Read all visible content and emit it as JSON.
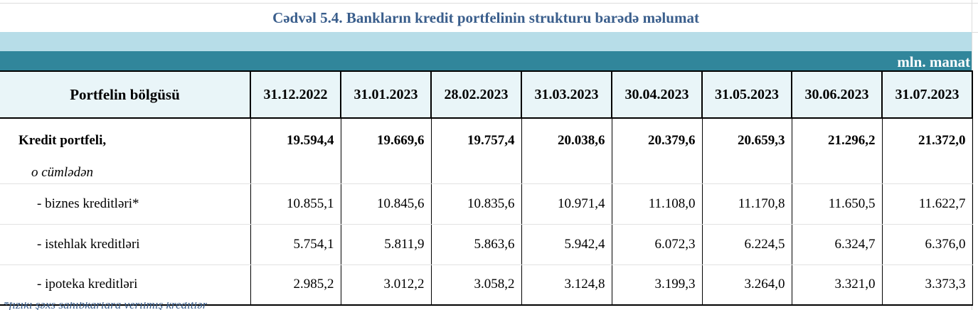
{
  "title": "Cədvəl 5.4. Bankların kredit portfelinin strukturu barədə məlumat",
  "unit": "mln. manat",
  "header": {
    "label": "Portfelin bölgüsü",
    "dates": [
      "31.12.2022",
      "31.01.2023",
      "28.02.2023",
      "31.03.2023",
      "30.04.2023",
      "31.05.2023",
      "30.06.2023",
      "31.07.2023"
    ]
  },
  "rows": [
    {
      "label": "Kredit portfeli,",
      "values": [
        "19.594,4",
        "19.669,6",
        "19.757,4",
        "20.038,6",
        "20.379,6",
        "20.659,3",
        "21.296,2",
        "21.372,0"
      ]
    },
    {
      "label": "o cümlədən",
      "values": [
        "",
        "",
        "",
        "",
        "",
        "",
        "",
        ""
      ]
    },
    {
      "label": "- biznes kreditləri*",
      "values": [
        "10.855,1",
        "10.845,6",
        "10.835,6",
        "10.971,4",
        "11.108,0",
        "11.170,8",
        "11.650,5",
        "11.622,7"
      ]
    },
    {
      "label": "- istehlak kreditləri",
      "values": [
        "5.754,1",
        "5.811,9",
        "5.863,6",
        "5.942,4",
        "6.072,3",
        "6.224,5",
        "6.324,7",
        "6.376,0"
      ]
    },
    {
      "label": "- ipoteka kreditləri",
      "values": [
        "2.985,2",
        "3.012,2",
        "3.058,2",
        "3.124,8",
        "3.199,3",
        "3.264,0",
        "3.321,0",
        "3.373,3"
      ]
    }
  ],
  "footnote": "*fiziki şəxs sahibkarlara verilmiş kreditlər"
}
